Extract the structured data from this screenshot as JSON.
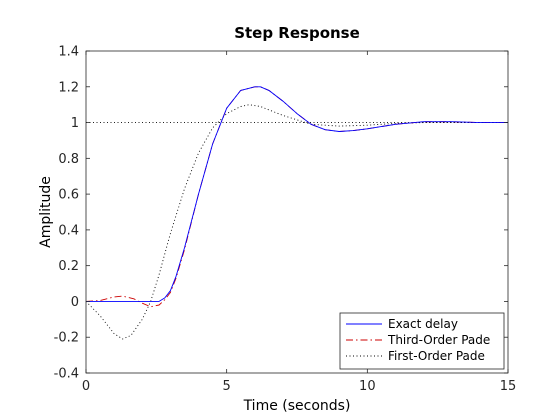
{
  "chart_data": {
    "type": "line",
    "title": "Step Response",
    "xlabel": "Time (seconds)",
    "ylabel": "Amplitude",
    "xlim": [
      0,
      15
    ],
    "ylim": [
      -0.4,
      1.4
    ],
    "xticks": [
      "0",
      "5",
      "10",
      "15"
    ],
    "yticks": [
      "-0.4",
      "-0.2",
      "0",
      "0.2",
      "0.4",
      "0.6",
      "0.8",
      "1",
      "1.2",
      "1.4"
    ],
    "grid": false,
    "legend_position": "bottom-right",
    "series": [
      {
        "name": "Exact delay",
        "color": "#0000ff",
        "dash": "solid",
        "x": [
          0,
          2.6,
          2.8,
          3.0,
          3.2,
          3.5,
          4.0,
          4.5,
          5.0,
          5.5,
          6.0,
          6.2,
          6.5,
          7.0,
          7.5,
          8.0,
          8.5,
          9.0,
          9.5,
          10.0,
          11.0,
          12.0,
          13.0,
          14.0,
          15.0
        ],
        "y": [
          0,
          0,
          0.02,
          0.06,
          0.14,
          0.3,
          0.6,
          0.88,
          1.08,
          1.18,
          1.2,
          1.2,
          1.18,
          1.12,
          1.05,
          0.99,
          0.96,
          0.95,
          0.955,
          0.965,
          0.99,
          1.005,
          1.005,
          1.0,
          1.0
        ]
      },
      {
        "name": "Third-Order Pade",
        "color": "#cc0000",
        "dash": "dashdot",
        "x": [
          0,
          0.5,
          1.0,
          1.3,
          1.7,
          2.0,
          2.3,
          2.6,
          2.8,
          3.0,
          3.2,
          3.5,
          4.0,
          4.5,
          5.0,
          5.5,
          6.0,
          6.2,
          6.5,
          7.0,
          7.5,
          8.0,
          8.5,
          9.0,
          9.5,
          10.0,
          11.0,
          12.0,
          13.0,
          14.0,
          15.0
        ],
        "y": [
          0,
          0.005,
          0.025,
          0.03,
          0.015,
          -0.01,
          -0.03,
          -0.02,
          0.01,
          0.05,
          0.13,
          0.29,
          0.6,
          0.88,
          1.08,
          1.18,
          1.2,
          1.2,
          1.18,
          1.12,
          1.05,
          0.99,
          0.96,
          0.95,
          0.955,
          0.965,
          0.99,
          1.005,
          1.005,
          1.0,
          1.0
        ]
      },
      {
        "name": "First-Order Pade",
        "color": "#000000",
        "dash": "dotted",
        "x": [
          0,
          0.5,
          1.0,
          1.3,
          1.6,
          2.0,
          2.3,
          2.6,
          3.0,
          3.5,
          4.0,
          4.5,
          5.0,
          5.5,
          5.8,
          6.2,
          7.0,
          8.0,
          9.0,
          10.0,
          11.0,
          12.0,
          13.0,
          14.0,
          15.0
        ],
        "y": [
          0,
          -0.08,
          -0.18,
          -0.21,
          -0.19,
          -0.1,
          0.0,
          0.15,
          0.38,
          0.63,
          0.83,
          0.97,
          1.05,
          1.09,
          1.1,
          1.09,
          1.04,
          0.99,
          0.98,
          0.985,
          0.995,
          1.0,
          1.0,
          1.0,
          1.0
        ]
      },
      {
        "name": "",
        "color": "#000000",
        "dash": "dotted",
        "x": [
          0,
          15
        ],
        "y": [
          1,
          1
        ]
      }
    ]
  }
}
